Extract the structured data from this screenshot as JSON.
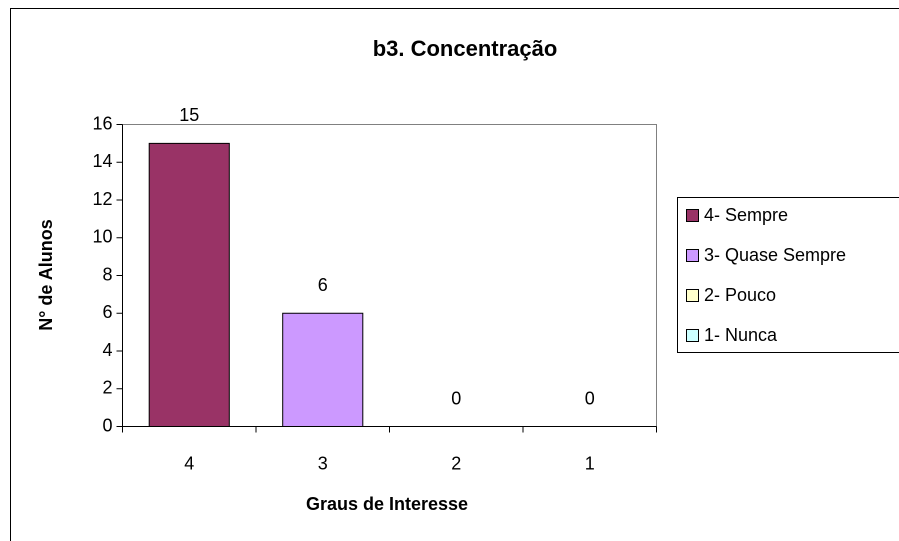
{
  "chart_data": {
    "type": "bar",
    "title": "b3. Concentração",
    "x_label": "Graus de Interesse",
    "y_label": "N° de Alunos",
    "categories": [
      "4",
      "3",
      "2",
      "1"
    ],
    "values": [
      15,
      6,
      0,
      0
    ],
    "colors": [
      "#993366",
      "#cc99ff",
      "#ffffcc",
      "#ccffff"
    ],
    "legend": [
      "4- Sempre",
      "3- Quase Sempre",
      "2- Pouco",
      "1- Nunca"
    ],
    "ylim": [
      0,
      16
    ],
    "yticks": [
      0,
      2,
      4,
      6,
      8,
      10,
      12,
      14,
      16
    ],
    "grid": false,
    "legend_position": "right"
  }
}
